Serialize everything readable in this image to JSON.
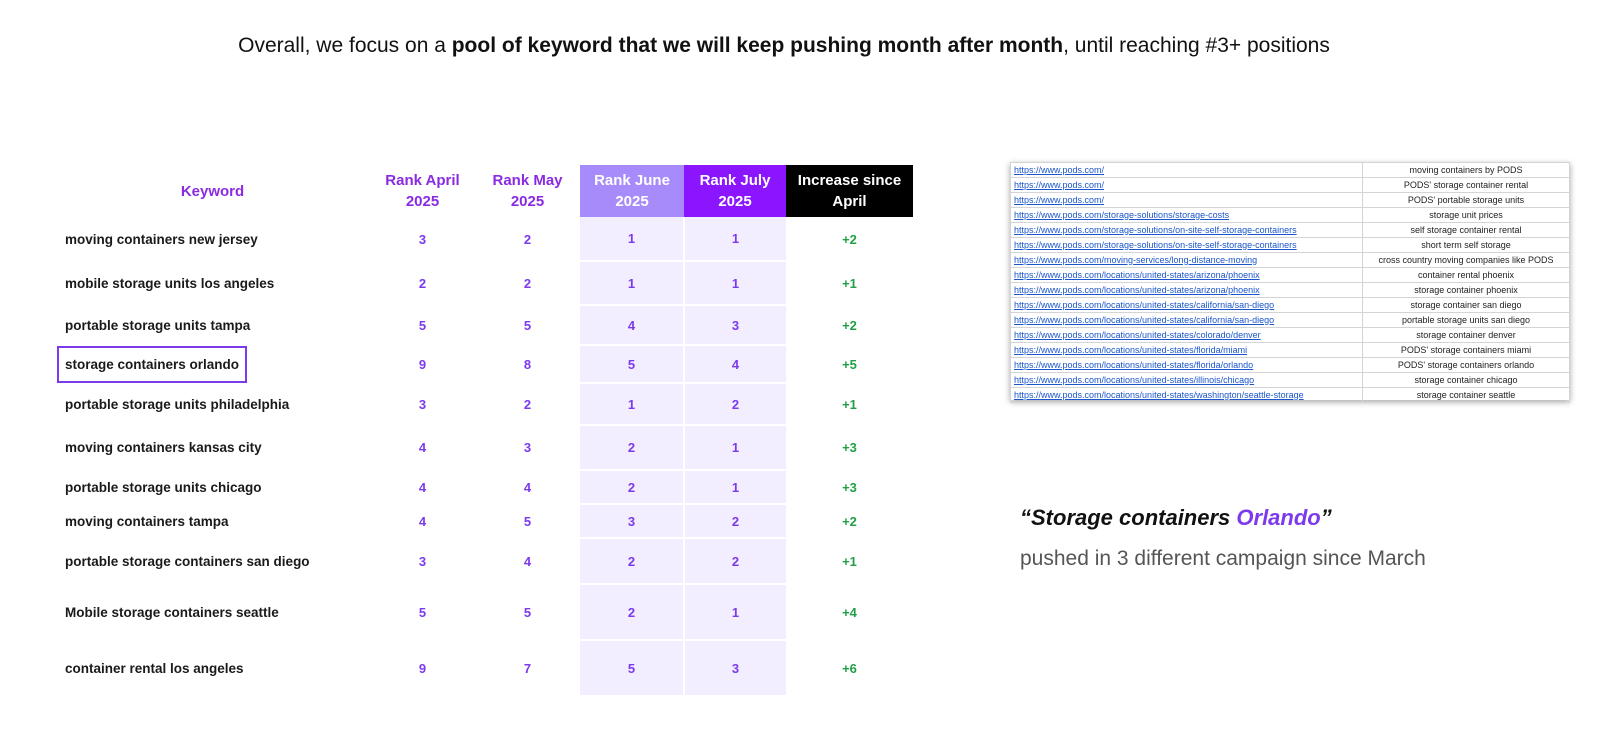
{
  "headline": {
    "part1": "Overall, we focus on a ",
    "bold": "pool of keyword that we will keep pushing month after month",
    "part2": ", until reaching #3+ positions"
  },
  "table": {
    "headers": {
      "keyword": "Keyword",
      "april": "Rank April 2025",
      "may": "Rank May 2025",
      "june": "Rank June 2025",
      "july": "Rank July 2025",
      "increase": "Increase since April"
    },
    "rows": [
      {
        "keyword": "moving containers new jersey",
        "april": "3",
        "may": "2",
        "june": "1",
        "july": "1",
        "increase": "+2"
      },
      {
        "keyword": "mobile storage units los angeles",
        "april": "2",
        "may": "2",
        "june": "1",
        "july": "1",
        "increase": "+1"
      },
      {
        "keyword": "portable storage units tampa",
        "april": "5",
        "may": "5",
        "june": "4",
        "july": "3",
        "increase": "+2"
      },
      {
        "keyword": "storage containers orlando",
        "april": "9",
        "may": "8",
        "june": "5",
        "july": "4",
        "increase": "+5",
        "highlighted": true
      },
      {
        "keyword": "portable storage units philadelphia",
        "april": "3",
        "may": "2",
        "june": "1",
        "july": "2",
        "increase": "+1"
      },
      {
        "keyword": "moving containers kansas city",
        "april": "4",
        "may": "3",
        "june": "2",
        "july": "1",
        "increase": "+3"
      },
      {
        "keyword": "portable storage units chicago",
        "april": "4",
        "may": "4",
        "june": "2",
        "july": "1",
        "increase": "+3"
      },
      {
        "keyword": "moving containers tampa",
        "april": "4",
        "may": "5",
        "june": "3",
        "july": "2",
        "increase": "+2"
      },
      {
        "keyword": "portable storage containers san diego",
        "april": "3",
        "may": "4",
        "june": "2",
        "july": "2",
        "increase": "+1"
      },
      {
        "keyword": "Mobile storage containers seattle",
        "april": "5",
        "may": "5",
        "june": "2",
        "july": "1",
        "increase": "+4"
      },
      {
        "keyword": "container rental los angeles",
        "april": "9",
        "may": "7",
        "june": "5",
        "july": "3",
        "increase": "+6"
      }
    ]
  },
  "url_list": [
    {
      "url": "https://www.pods.com/",
      "keyword": "moving containers by PODS"
    },
    {
      "url": "https://www.pods.com/",
      "keyword": "PODS' storage container rental"
    },
    {
      "url": "https://www.pods.com/",
      "keyword": "PODS' portable storage units"
    },
    {
      "url": "https://www.pods.com/storage-solutions/storage-costs",
      "keyword": "storage unit prices"
    },
    {
      "url": "https://www.pods.com/storage-solutions/on-site-self-storage-containers",
      "keyword": "self storage container rental"
    },
    {
      "url": "https://www.pods.com/storage-solutions/on-site-self-storage-containers",
      "keyword": "short term self storage"
    },
    {
      "url": "https://www.pods.com/moving-services/long-distance-moving",
      "keyword": "cross country moving companies like PODS"
    },
    {
      "url": "https://www.pods.com/locations/united-states/arizona/phoenix",
      "keyword": "container rental phoenix"
    },
    {
      "url": "https://www.pods.com/locations/united-states/arizona/phoenix",
      "keyword": "storage container phoenix"
    },
    {
      "url": "https://www.pods.com/locations/united-states/california/san-diego",
      "keyword": "storage container san diego"
    },
    {
      "url": "https://www.pods.com/locations/united-states/california/san-diego",
      "keyword": "portable storage units san diego"
    },
    {
      "url": "https://www.pods.com/locations/united-states/colorado/denver",
      "keyword": "storage container denver"
    },
    {
      "url": "https://www.pods.com/locations/united-states/florida/miami",
      "keyword": "PODS' storage containers miami"
    },
    {
      "url": "https://www.pods.com/locations/united-states/florida/orlando",
      "keyword": "PODS' storage containers orlando"
    },
    {
      "url": "https://www.pods.com/locations/united-states/illinois/chicago",
      "keyword": "storage container chicago"
    },
    {
      "url": "https://www.pods.com/locations/united-states/washington/seattle-storage",
      "keyword": "storage container seattle"
    }
  ],
  "quote": {
    "open": "“Storage containers ",
    "city": "Orlando",
    "close": "”",
    "subtitle": "pushed in 3 different campaign since March"
  },
  "colors": {
    "accent": "#7c3aed",
    "june_header": "#a78bfa",
    "july_header": "#8b15ff",
    "increase_header": "#000000",
    "increase_text": "#22a047"
  }
}
